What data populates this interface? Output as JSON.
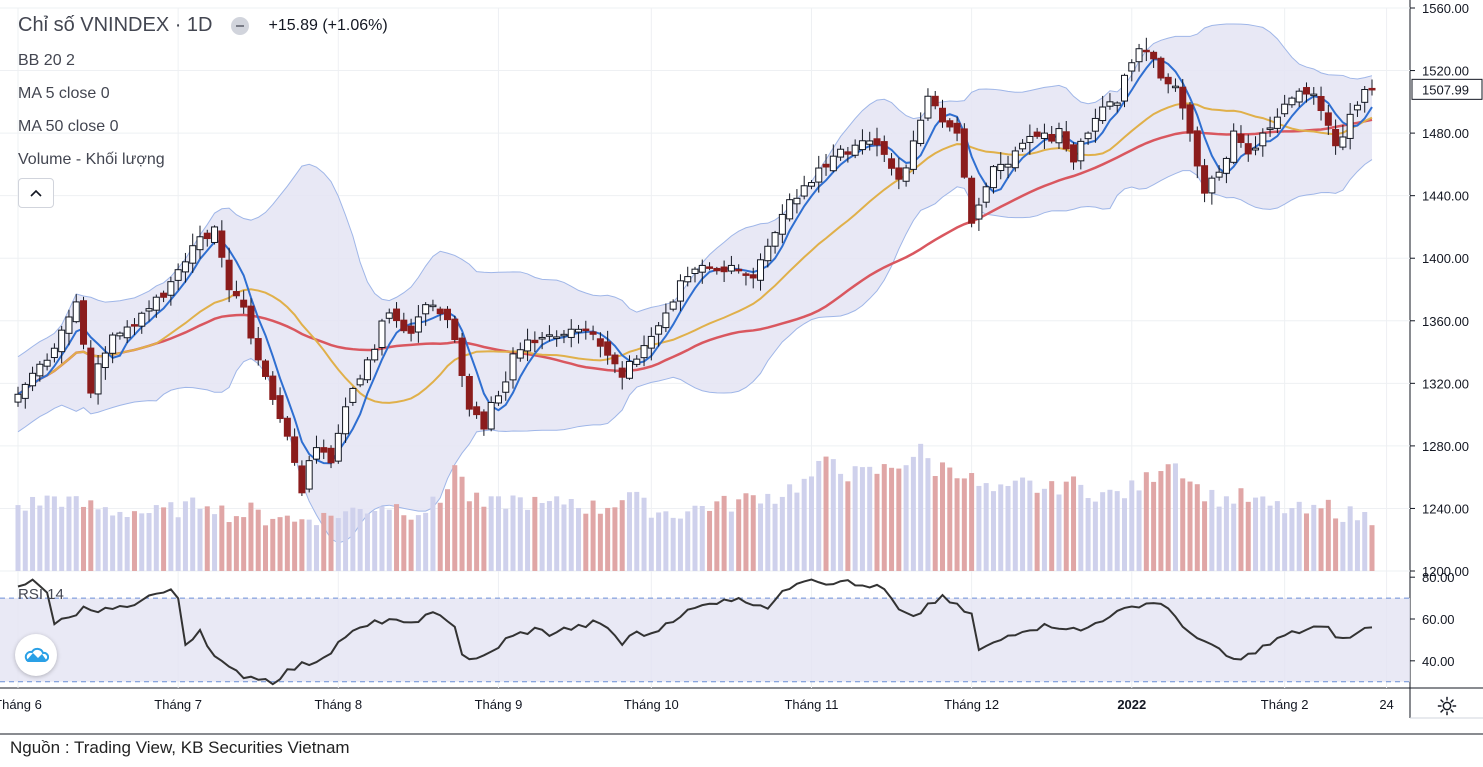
{
  "title": "Chỉ số VNINDEX · 1D",
  "change": "+15.89 (+1.06%)",
  "indicators": [
    "BB 20 2",
    "MA 5 close 0",
    "MA 50 close 0",
    "Volume - Khối lượng"
  ],
  "rsi_label": "RSI 14",
  "source": "Nguồn : Trading View, KB Securities Vietnam",
  "colors": {
    "up": "#ffffff",
    "down": "#8b1c1c",
    "ma5": "#2f6fd1",
    "ma20": "#e0b04a",
    "ma50": "#d9575f",
    "band": "#e4e4f3",
    "bandLine": "#9fb6e8",
    "volUp": "#cfd1ec",
    "volDown": "#e0a6a6",
    "rsi": "#333333"
  },
  "chart_data": {
    "type": "candlestick",
    "title": "Chỉ số VNINDEX · 1D",
    "price_axis": {
      "ticks": [
        "1560.00",
        "1520.00",
        "1480.00",
        "1440.00",
        "1400.00",
        "1360.00",
        "1320.00",
        "1280.00",
        "1240.00",
        "1200.00"
      ],
      "range": [
        1200,
        1560
      ]
    },
    "rsi_axis": {
      "ticks": [
        "80.00",
        "60.00",
        "40.00"
      ],
      "range": [
        27,
        82
      ],
      "bands": [
        30,
        70
      ]
    },
    "last_price_label": "1507.99",
    "x_labels": [
      {
        "label": "Tháng 6",
        "i": 0
      },
      {
        "label": "Tháng 7",
        "i": 22
      },
      {
        "label": "Tháng 8",
        "i": 44
      },
      {
        "label": "Tháng 9",
        "i": 66
      },
      {
        "label": "Tháng 10",
        "i": 87
      },
      {
        "label": "Tháng 11",
        "i": 109
      },
      {
        "label": "Tháng 12",
        "i": 131
      },
      {
        "label": "2022",
        "i": 153
      },
      {
        "label": "Tháng 2",
        "i": 174
      },
      {
        "label": "24",
        "i": 188
      }
    ],
    "close_anchors": [
      [
        0,
        1313
      ],
      [
        5,
        1345
      ],
      [
        8,
        1372
      ],
      [
        10,
        1318
      ],
      [
        13,
        1350
      ],
      [
        17,
        1362
      ],
      [
        21,
        1385
      ],
      [
        24,
        1408
      ],
      [
        27,
        1420
      ],
      [
        29,
        1380
      ],
      [
        31,
        1372
      ],
      [
        33,
        1335
      ],
      [
        35,
        1305
      ],
      [
        37,
        1290
      ],
      [
        39,
        1250
      ],
      [
        41,
        1282
      ],
      [
        43,
        1270
      ],
      [
        45,
        1305
      ],
      [
        48,
        1335
      ],
      [
        51,
        1365
      ],
      [
        54,
        1352
      ],
      [
        56,
        1372
      ],
      [
        58,
        1368
      ],
      [
        60,
        1348
      ],
      [
        62,
        1305
      ],
      [
        64,
        1295
      ],
      [
        66,
        1312
      ],
      [
        68,
        1335
      ],
      [
        70,
        1348
      ],
      [
        73,
        1350
      ],
      [
        76,
        1352
      ],
      [
        79,
        1355
      ],
      [
        81,
        1338
      ],
      [
        83,
        1328
      ],
      [
        85,
        1340
      ],
      [
        88,
        1355
      ],
      [
        90,
        1372
      ],
      [
        92,
        1390
      ],
      [
        94,
        1396
      ],
      [
        96,
        1392
      ],
      [
        99,
        1392
      ],
      [
        101,
        1388
      ],
      [
        103,
        1410
      ],
      [
        105,
        1428
      ],
      [
        107,
        1442
      ],
      [
        110,
        1455
      ],
      [
        113,
        1465
      ],
      [
        115,
        1468
      ],
      [
        117,
        1475
      ],
      [
        119,
        1465
      ],
      [
        121,
        1450
      ],
      [
        123,
        1475
      ],
      [
        125,
        1505
      ],
      [
        127,
        1490
      ],
      [
        129,
        1480
      ],
      [
        131,
        1420
      ],
      [
        133,
        1448
      ],
      [
        135,
        1460
      ],
      [
        137,
        1470
      ],
      [
        139,
        1477
      ],
      [
        141,
        1480
      ],
      [
        143,
        1478
      ],
      [
        145,
        1462
      ],
      [
        147,
        1480
      ],
      [
        149,
        1497
      ],
      [
        151,
        1503
      ],
      [
        153,
        1525
      ],
      [
        155,
        1535
      ],
      [
        157,
        1520
      ],
      [
        159,
        1510
      ],
      [
        161,
        1478
      ],
      [
        163,
        1440
      ],
      [
        165,
        1455
      ],
      [
        167,
        1478
      ],
      [
        169,
        1470
      ],
      [
        171,
        1480
      ],
      [
        173,
        1495
      ],
      [
        175,
        1502
      ],
      [
        177,
        1505
      ],
      [
        179,
        1498
      ],
      [
        181,
        1472
      ],
      [
        183,
        1492
      ],
      [
        185,
        1508
      ]
    ],
    "rsi_anchors": [
      [
        0,
        77
      ],
      [
        2,
        78
      ],
      [
        4,
        72
      ],
      [
        5,
        58
      ],
      [
        7,
        60
      ],
      [
        9,
        65
      ],
      [
        11,
        62
      ],
      [
        13,
        66
      ],
      [
        15,
        65
      ],
      [
        17,
        70
      ],
      [
        19,
        72
      ],
      [
        21,
        73
      ],
      [
        22,
        70
      ],
      [
        23,
        48
      ],
      [
        25,
        55
      ],
      [
        27,
        42
      ],
      [
        29,
        36
      ],
      [
        31,
        33
      ],
      [
        33,
        32
      ],
      [
        35,
        30
      ],
      [
        37,
        35
      ],
      [
        39,
        38
      ],
      [
        41,
        40
      ],
      [
        43,
        45
      ],
      [
        45,
        52
      ],
      [
        47,
        55
      ],
      [
        49,
        58
      ],
      [
        51,
        60
      ],
      [
        53,
        57
      ],
      [
        55,
        60
      ],
      [
        57,
        62
      ],
      [
        59,
        60
      ],
      [
        60,
        57
      ],
      [
        61,
        43
      ],
      [
        63,
        40
      ],
      [
        65,
        44
      ],
      [
        67,
        50
      ],
      [
        69,
        53
      ],
      [
        71,
        55
      ],
      [
        73,
        53
      ],
      [
        75,
        55
      ],
      [
        77,
        56
      ],
      [
        79,
        58
      ],
      [
        81,
        56
      ],
      [
        83,
        48
      ],
      [
        85,
        54
      ],
      [
        87,
        52
      ],
      [
        89,
        58
      ],
      [
        91,
        62
      ],
      [
        93,
        65
      ],
      [
        95,
        67
      ],
      [
        97,
        70
      ],
      [
        99,
        69
      ],
      [
        101,
        68
      ],
      [
        103,
        66
      ],
      [
        105,
        72
      ],
      [
        107,
        78
      ],
      [
        109,
        80
      ],
      [
        111,
        77
      ],
      [
        113,
        79
      ],
      [
        115,
        76
      ],
      [
        117,
        76
      ],
      [
        119,
        74
      ],
      [
        121,
        64
      ],
      [
        123,
        60
      ],
      [
        125,
        67
      ],
      [
        127,
        70
      ],
      [
        129,
        66
      ],
      [
        131,
        62
      ],
      [
        132,
        45
      ],
      [
        134,
        48
      ],
      [
        136,
        52
      ],
      [
        138,
        55
      ],
      [
        140,
        56
      ],
      [
        142,
        57
      ],
      [
        144,
        56
      ],
      [
        146,
        54
      ],
      [
        148,
        58
      ],
      [
        150,
        62
      ],
      [
        152,
        64
      ],
      [
        154,
        67
      ],
      [
        156,
        68
      ],
      [
        158,
        66
      ],
      [
        160,
        55
      ],
      [
        162,
        52
      ],
      [
        164,
        47
      ],
      [
        166,
        42
      ],
      [
        168,
        40
      ],
      [
        170,
        45
      ],
      [
        172,
        48
      ],
      [
        174,
        52
      ],
      [
        176,
        54
      ],
      [
        178,
        56
      ],
      [
        180,
        55
      ],
      [
        182,
        50
      ],
      [
        184,
        53
      ],
      [
        186,
        57
      ]
    ],
    "volume_anchors": [
      [
        0,
        24
      ],
      [
        3,
        26
      ],
      [
        5,
        28
      ],
      [
        8,
        25
      ],
      [
        10,
        24
      ],
      [
        13,
        22
      ],
      [
        16,
        22
      ],
      [
        19,
        21
      ],
      [
        22,
        23
      ],
      [
        24,
        24
      ],
      [
        26,
        27
      ],
      [
        28,
        22
      ],
      [
        30,
        20
      ],
      [
        32,
        22
      ],
      [
        34,
        19
      ],
      [
        36,
        21
      ],
      [
        38,
        17
      ],
      [
        40,
        20
      ],
      [
        42,
        19
      ],
      [
        44,
        21
      ],
      [
        46,
        22
      ],
      [
        48,
        23
      ],
      [
        50,
        25
      ],
      [
        52,
        24
      ],
      [
        54,
        22
      ],
      [
        56,
        23
      ],
      [
        58,
        26
      ],
      [
        60,
        42
      ],
      [
        62,
        28
      ],
      [
        64,
        24
      ],
      [
        66,
        25
      ],
      [
        68,
        27
      ],
      [
        70,
        26
      ],
      [
        72,
        24
      ],
      [
        74,
        25
      ],
      [
        76,
        27
      ],
      [
        78,
        24
      ],
      [
        80,
        23
      ],
      [
        82,
        26
      ],
      [
        84,
        30
      ],
      [
        86,
        24
      ],
      [
        88,
        22
      ],
      [
        90,
        21
      ],
      [
        92,
        22
      ],
      [
        94,
        24
      ],
      [
        96,
        25
      ],
      [
        98,
        25
      ],
      [
        100,
        27
      ],
      [
        102,
        29
      ],
      [
        104,
        28
      ],
      [
        106,
        32
      ],
      [
        108,
        34
      ],
      [
        110,
        40
      ],
      [
        112,
        45
      ],
      [
        114,
        38
      ],
      [
        116,
        38
      ],
      [
        118,
        39
      ],
      [
        120,
        41
      ],
      [
        122,
        44
      ],
      [
        124,
        48
      ],
      [
        126,
        40
      ],
      [
        128,
        42
      ],
      [
        130,
        38
      ],
      [
        132,
        33
      ],
      [
        134,
        30
      ],
      [
        136,
        30
      ],
      [
        138,
        34
      ],
      [
        140,
        32
      ],
      [
        142,
        31
      ],
      [
        144,
        35
      ],
      [
        146,
        32
      ],
      [
        148,
        30
      ],
      [
        150,
        29
      ],
      [
        152,
        30
      ],
      [
        154,
        33
      ],
      [
        156,
        38
      ],
      [
        158,
        45
      ],
      [
        160,
        40
      ],
      [
        162,
        32
      ],
      [
        164,
        28
      ],
      [
        166,
        27
      ],
      [
        168,
        28
      ],
      [
        170,
        26
      ],
      [
        172,
        24
      ],
      [
        174,
        23
      ],
      [
        176,
        22
      ],
      [
        178,
        21
      ],
      [
        180,
        24
      ],
      [
        182,
        21
      ],
      [
        184,
        20
      ],
      [
        186,
        19
      ]
    ]
  }
}
